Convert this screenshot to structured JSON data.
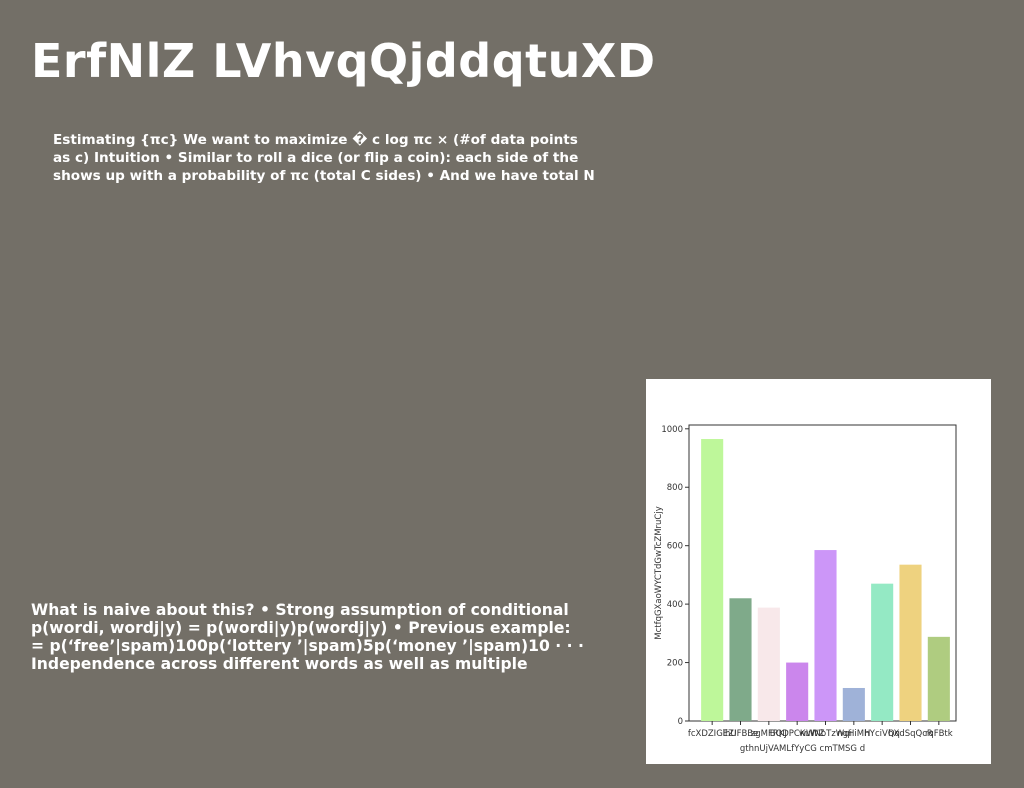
{
  "slide": {
    "title": "ErfNlZ LVhvqQjddqtuXD",
    "paragraph1_lines": [
      "Estimating {πc} We want to maximize � c log πc × (#of data points",
      "as c) Intuition • Similar to roll a dice (or flip a coin): each side of the",
      "shows up with a probability of πc (total C sides) • And we have total N"
    ],
    "paragraph2_lines": [
      "What is naive about this? • Strong assumption of conditional",
      "p(wordi, wordj|y) = p(wordi|y)p(wordj|y) • Previous example:",
      "= p(‘free’|spam)100p(‘lottery ’|spam)5p(‘money ’|spam)10 · · ·",
      "Independence across different words as well as multiple"
    ]
  },
  "chart_data": {
    "type": "bar",
    "categories": [
      "fcXDZIGEZI",
      "lhUFBBe",
      "zgMFRKJ",
      "BQDPCKuWZ",
      "wWNbTzWqi",
      "ngHiMH",
      "hYciVQq",
      "hXdSqQcR",
      "rqFBtk"
    ],
    "values": [
      965,
      420,
      388,
      200,
      585,
      113,
      470,
      535,
      288
    ],
    "colors": [
      "#bef79a",
      "#7faa8a",
      "#f8e8ea",
      "#cb86ec",
      "#cc96f8",
      "#9fb2d8",
      "#94e9c4",
      "#eed27f",
      "#afcc80"
    ],
    "ylabel": "MctfqGXaoWYCTdGwTcZMruCjy",
    "xlabel_lines": [
      "gthnUjVAMLfYyCG cmTMSG  d"
    ],
    "ylim": [
      0,
      1000
    ],
    "yticks": [
      0,
      200,
      400,
      600,
      800,
      1000
    ],
    "grid": false
  }
}
